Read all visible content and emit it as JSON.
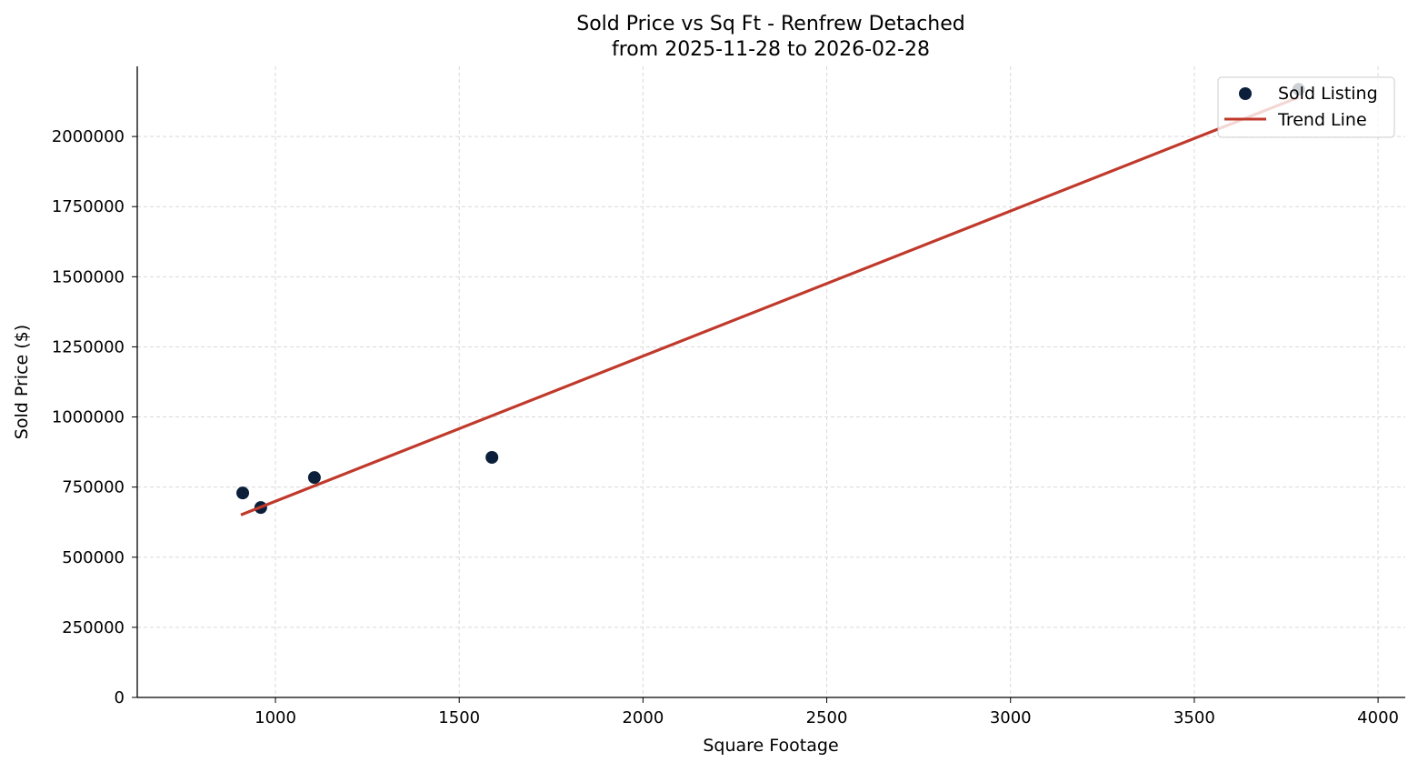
{
  "chart_data": {
    "type": "scatter",
    "title": "Sold Price vs Sq Ft - Renfrew Detached",
    "subtitle": "from 2025-11-28 to 2026-02-28",
    "xlabel": "Square Footage",
    "ylabel": "Sold Price ($)",
    "xlim": [
      624,
      4074
    ],
    "ylim": [
      0,
      2250000
    ],
    "xticks": [
      1000,
      1500,
      2000,
      2500,
      3000,
      3500,
      4000
    ],
    "yticks": [
      0,
      250000,
      500000,
      750000,
      1000000,
      1250000,
      1500000,
      1750000,
      2000000
    ],
    "grid": true,
    "legend_position": "top-right",
    "series": [
      {
        "name": "Sold Listing",
        "kind": "scatter",
        "color": "#0b1f3a",
        "points": [
          [
            911,
            729000
          ],
          [
            960,
            677000
          ],
          [
            1106,
            784000
          ],
          [
            1589,
            856000
          ],
          [
            3784,
            2168000
          ]
        ]
      },
      {
        "name": "Trend Line",
        "kind": "line",
        "color": "#c0392b",
        "points": [
          [
            906,
            651000
          ],
          [
            3784,
            2140000
          ]
        ]
      }
    ]
  }
}
